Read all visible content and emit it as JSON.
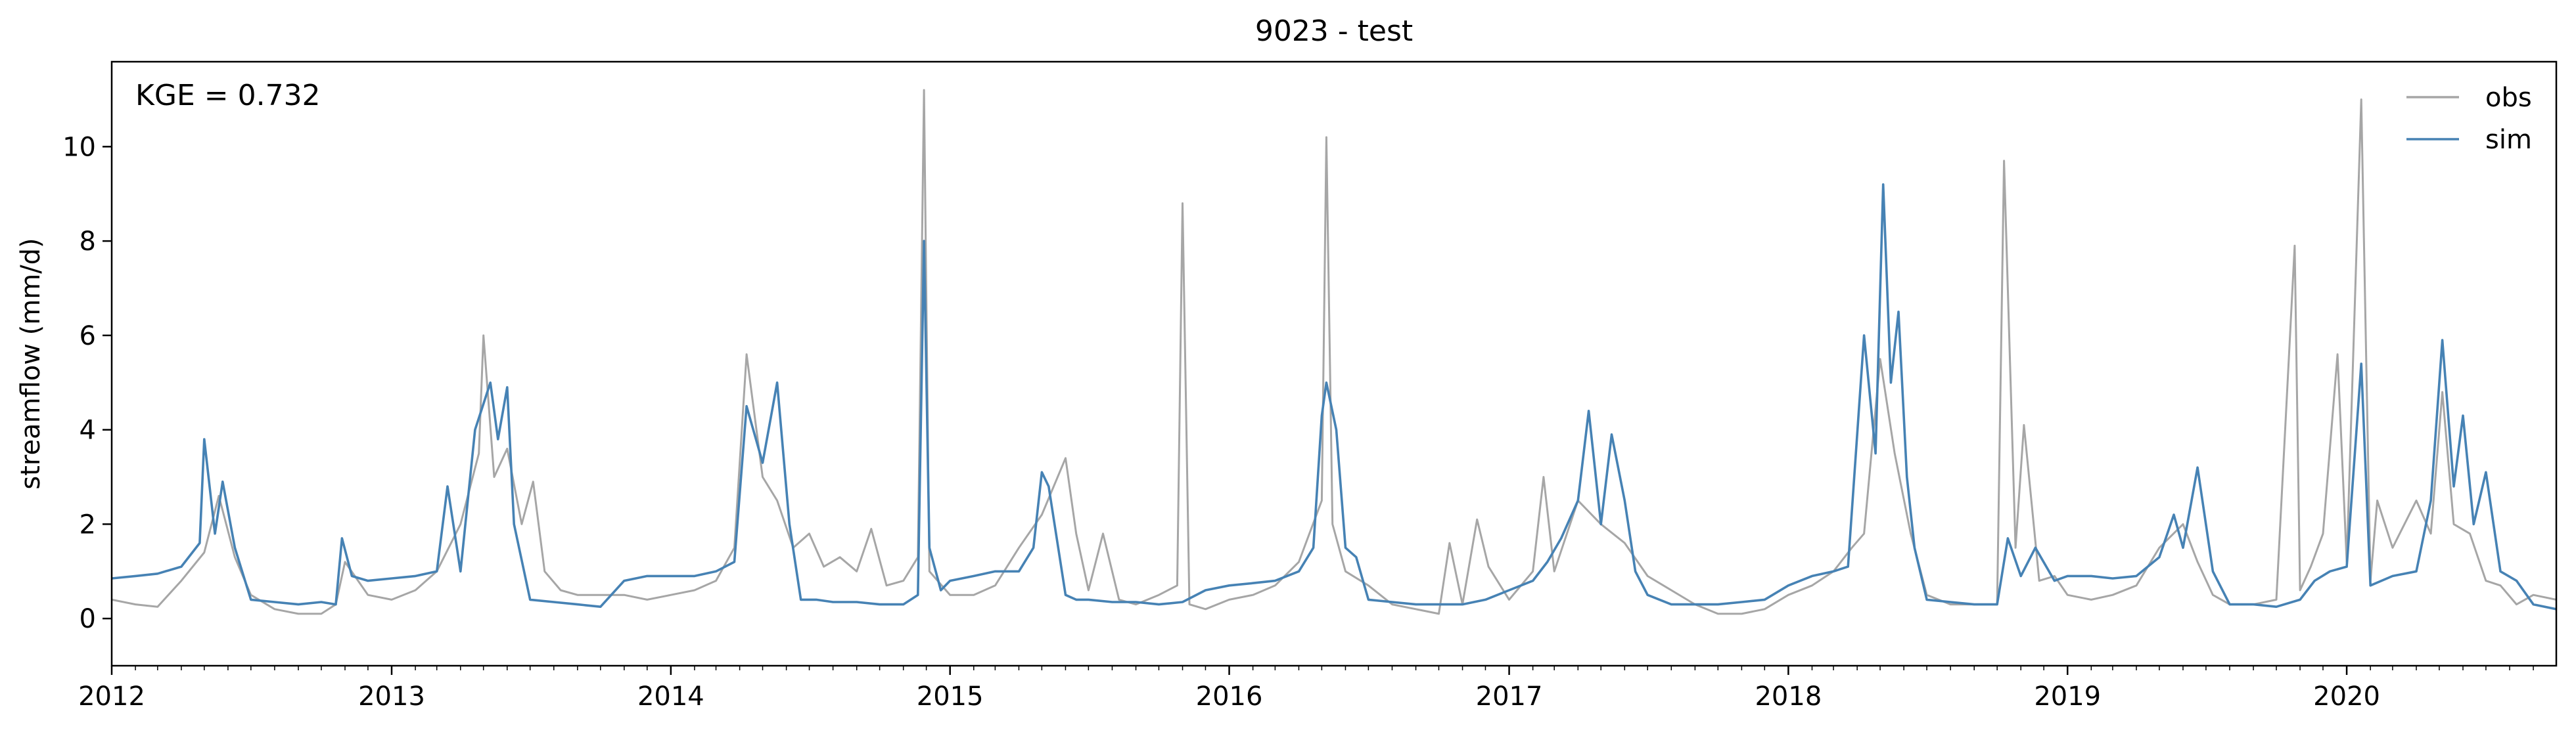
{
  "chart_data": {
    "type": "line",
    "title": "9023 - test",
    "xlabel": "",
    "ylabel": "streamflow (mm/d)",
    "xlim": [
      "2012-01-01",
      "2020-10-01"
    ],
    "ylim": [
      -1.0,
      11.8
    ],
    "x_ticks": [
      {
        "label": "2012",
        "date": "2012-01-01"
      },
      {
        "label": "2013",
        "date": "2013-01-01"
      },
      {
        "label": "2014",
        "date": "2014-01-01"
      },
      {
        "label": "2015",
        "date": "2015-01-01"
      },
      {
        "label": "2016",
        "date": "2016-01-01"
      },
      {
        "label": "2017",
        "date": "2017-01-01"
      },
      {
        "label": "2018",
        "date": "2018-01-01"
      },
      {
        "label": "2019",
        "date": "2019-01-01"
      },
      {
        "label": "2020",
        "date": "2020-01-01"
      }
    ],
    "y_ticks": [
      0,
      2,
      4,
      6,
      8,
      10
    ],
    "grid": false,
    "legend_position": "top-right",
    "annotation": "KGE = 0.732",
    "series": [
      {
        "name": "obs",
        "color": "#a6a6a6",
        "x": [
          "2012-01-01",
          "2012-02-01",
          "2012-03-01",
          "2012-04-01",
          "2012-05-01",
          "2012-05-20",
          "2012-06-10",
          "2012-07-01",
          "2012-08-01",
          "2012-09-01",
          "2012-10-01",
          "2012-10-20",
          "2012-11-01",
          "2012-12-01",
          "2013-01-01",
          "2013-02-01",
          "2013-03-01",
          "2013-04-01",
          "2013-04-25",
          "2013-05-01",
          "2013-05-15",
          "2013-06-01",
          "2013-06-20",
          "2013-07-05",
          "2013-07-20",
          "2013-08-10",
          "2013-09-01",
          "2013-10-01",
          "2013-11-01",
          "2013-12-01",
          "2014-01-01",
          "2014-02-01",
          "2014-03-01",
          "2014-03-25",
          "2014-04-10",
          "2014-05-01",
          "2014-05-20",
          "2014-06-10",
          "2014-07-01",
          "2014-07-20",
          "2014-08-10",
          "2014-09-01",
          "2014-09-20",
          "2014-10-10",
          "2014-11-01",
          "2014-11-20",
          "2014-11-28",
          "2014-12-05",
          "2015-01-01",
          "2015-02-01",
          "2015-03-01",
          "2015-04-01",
          "2015-05-01",
          "2015-06-01",
          "2015-06-15",
          "2015-07-01",
          "2015-07-20",
          "2015-08-10",
          "2015-09-01",
          "2015-10-01",
          "2015-10-25",
          "2015-11-01",
          "2015-11-10",
          "2015-12-01",
          "2016-01-01",
          "2016-02-01",
          "2016-03-01",
          "2016-04-01",
          "2016-05-01",
          "2016-05-07",
          "2016-05-15",
          "2016-06-01",
          "2016-07-01",
          "2016-08-01",
          "2016-09-01",
          "2016-10-01",
          "2016-10-15",
          "2016-11-01",
          "2016-11-20",
          "2016-12-05",
          "2017-01-01",
          "2017-02-01",
          "2017-02-15",
          "2017-03-01",
          "2017-04-01",
          "2017-05-01",
          "2017-06-01",
          "2017-07-01",
          "2017-08-01",
          "2017-09-01",
          "2017-10-01",
          "2017-11-01",
          "2017-12-01",
          "2018-01-01",
          "2018-02-01",
          "2018-03-01",
          "2018-03-25",
          "2018-04-10",
          "2018-05-01",
          "2018-05-20",
          "2018-06-10",
          "2018-07-01",
          "2018-08-01",
          "2018-09-01",
          "2018-10-01",
          "2018-10-10",
          "2018-10-25",
          "2018-11-05",
          "2018-11-25",
          "2018-12-15",
          "2019-01-01",
          "2019-02-01",
          "2019-03-01",
          "2019-04-01",
          "2019-05-01",
          "2019-06-01",
          "2019-06-20",
          "2019-07-10",
          "2019-08-01",
          "2019-09-01",
          "2019-10-01",
          "2019-10-25",
          "2019-11-01",
          "2019-11-15",
          "2019-12-01",
          "2019-12-20",
          "2020-01-01",
          "2020-01-20",
          "2020-02-01",
          "2020-02-10",
          "2020-03-01",
          "2020-04-01",
          "2020-04-20",
          "2020-05-05",
          "2020-05-20",
          "2020-06-10",
          "2020-07-01",
          "2020-07-20",
          "2020-08-10",
          "2020-09-01",
          "2020-10-01"
        ],
        "values": [
          0.4,
          0.3,
          0.25,
          0.8,
          1.4,
          2.6,
          1.3,
          0.5,
          0.2,
          0.1,
          0.1,
          0.3,
          1.2,
          0.5,
          0.4,
          0.6,
          1.0,
          2.0,
          3.5,
          6.0,
          3.0,
          3.6,
          2.0,
          2.9,
          1.0,
          0.6,
          0.5,
          0.5,
          0.5,
          0.4,
          0.5,
          0.6,
          0.8,
          1.5,
          5.6,
          3.0,
          2.5,
          1.5,
          1.8,
          1.1,
          1.3,
          1.0,
          1.9,
          0.7,
          0.8,
          1.3,
          11.2,
          1.0,
          0.5,
          0.5,
          0.7,
          1.5,
          2.2,
          3.4,
          1.8,
          0.6,
          1.8,
          0.4,
          0.3,
          0.5,
          0.7,
          8.8,
          0.3,
          0.2,
          0.4,
          0.5,
          0.7,
          1.2,
          2.5,
          10.2,
          2.0,
          1.0,
          0.7,
          0.3,
          0.2,
          0.1,
          1.6,
          0.3,
          2.1,
          1.1,
          0.4,
          1.0,
          3.0,
          1.0,
          2.5,
          2.0,
          1.6,
          0.9,
          0.6,
          0.3,
          0.1,
          0.1,
          0.2,
          0.5,
          0.7,
          1.0,
          1.5,
          1.8,
          5.5,
          3.5,
          1.8,
          0.5,
          0.3,
          0.3,
          0.3,
          9.7,
          1.5,
          4.1,
          0.8,
          0.9,
          0.5,
          0.4,
          0.5,
          0.7,
          1.5,
          2.0,
          1.2,
          0.5,
          0.3,
          0.3,
          0.4,
          7.9,
          0.6,
          1.1,
          1.8,
          5.6,
          1.2,
          11.0,
          0.8,
          2.5,
          1.5,
          2.5,
          1.8,
          4.8,
          2.0,
          1.8,
          0.8,
          0.7,
          0.3,
          0.5,
          0.4
        ]
      },
      {
        "name": "sim",
        "color": "#4682b4",
        "x": [
          "2012-01-01",
          "2012-02-01",
          "2012-03-01",
          "2012-04-01",
          "2012-04-25",
          "2012-05-01",
          "2012-05-15",
          "2012-05-25",
          "2012-06-10",
          "2012-07-01",
          "2012-08-01",
          "2012-09-01",
          "2012-10-01",
          "2012-10-20",
          "2012-10-28",
          "2012-11-10",
          "2012-12-01",
          "2013-01-01",
          "2013-02-01",
          "2013-03-01",
          "2013-03-15",
          "2013-04-01",
          "2013-04-20",
          "2013-05-10",
          "2013-05-20",
          "2013-06-01",
          "2013-06-10",
          "2013-07-01",
          "2013-08-01",
          "2013-09-01",
          "2013-10-01",
          "2013-11-01",
          "2013-12-01",
          "2014-01-01",
          "2014-02-01",
          "2014-03-01",
          "2014-03-25",
          "2014-04-10",
          "2014-05-01",
          "2014-05-20",
          "2014-06-05",
          "2014-06-20",
          "2014-07-10",
          "2014-08-01",
          "2014-09-01",
          "2014-10-01",
          "2014-11-01",
          "2014-11-20",
          "2014-11-28",
          "2014-12-05",
          "2014-12-20",
          "2015-01-01",
          "2015-02-01",
          "2015-03-01",
          "2015-04-01",
          "2015-04-20",
          "2015-05-01",
          "2015-05-10",
          "2015-06-01",
          "2015-06-15",
          "2015-07-01",
          "2015-08-01",
          "2015-09-01",
          "2015-10-01",
          "2015-11-01",
          "2015-12-01",
          "2016-01-01",
          "2016-02-01",
          "2016-03-01",
          "2016-04-01",
          "2016-04-20",
          "2016-05-01",
          "2016-05-07",
          "2016-05-20",
          "2016-06-01",
          "2016-06-15",
          "2016-07-01",
          "2016-08-01",
          "2016-09-01",
          "2016-10-01",
          "2016-11-01",
          "2016-12-01",
          "2017-01-01",
          "2017-02-01",
          "2017-02-20",
          "2017-03-10",
          "2017-04-01",
          "2017-04-15",
          "2017-05-01",
          "2017-05-15",
          "2017-06-01",
          "2017-06-15",
          "2017-07-01",
          "2017-08-01",
          "2017-09-01",
          "2017-10-01",
          "2017-11-01",
          "2017-12-01",
          "2018-01-01",
          "2018-02-01",
          "2018-03-01",
          "2018-03-20",
          "2018-04-10",
          "2018-04-25",
          "2018-05-05",
          "2018-05-15",
          "2018-05-25",
          "2018-06-05",
          "2018-06-15",
          "2018-07-01",
          "2018-08-01",
          "2018-09-01",
          "2018-10-01",
          "2018-10-15",
          "2018-11-01",
          "2018-11-20",
          "2018-12-15",
          "2019-01-01",
          "2019-02-01",
          "2019-03-01",
          "2019-04-01",
          "2019-05-01",
          "2019-05-20",
          "2019-06-01",
          "2019-06-20",
          "2019-07-10",
          "2019-08-01",
          "2019-09-01",
          "2019-10-01",
          "2019-11-01",
          "2019-11-20",
          "2019-12-10",
          "2020-01-01",
          "2020-01-20",
          "2020-02-01",
          "2020-03-01",
          "2020-04-01",
          "2020-04-20",
          "2020-05-05",
          "2020-05-20",
          "2020-06-01",
          "2020-06-15",
          "2020-07-01",
          "2020-07-20",
          "2020-08-10",
          "2020-09-01",
          "2020-10-01"
        ],
        "values": [
          0.85,
          0.9,
          0.95,
          1.1,
          1.6,
          3.8,
          1.8,
          2.9,
          1.5,
          0.4,
          0.35,
          0.3,
          0.35,
          0.3,
          1.7,
          0.9,
          0.8,
          0.85,
          0.9,
          1.0,
          2.8,
          1.0,
          4.0,
          5.0,
          3.8,
          4.9,
          2.0,
          0.4,
          0.35,
          0.3,
          0.25,
          0.8,
          0.9,
          0.9,
          0.9,
          1.0,
          1.2,
          4.5,
          3.3,
          5.0,
          2.0,
          0.4,
          0.4,
          0.35,
          0.35,
          0.3,
          0.3,
          0.5,
          8.0,
          1.5,
          0.6,
          0.8,
          0.9,
          1.0,
          1.0,
          1.5,
          3.1,
          2.8,
          0.5,
          0.4,
          0.4,
          0.35,
          0.35,
          0.3,
          0.35,
          0.6,
          0.7,
          0.75,
          0.8,
          1.0,
          1.5,
          4.3,
          5.0,
          4.0,
          1.5,
          1.3,
          0.4,
          0.35,
          0.3,
          0.3,
          0.3,
          0.4,
          0.6,
          0.8,
          1.2,
          1.7,
          2.5,
          4.4,
          2.0,
          3.9,
          2.5,
          1.0,
          0.5,
          0.3,
          0.3,
          0.3,
          0.35,
          0.4,
          0.7,
          0.9,
          1.0,
          1.1,
          6.0,
          3.5,
          9.2,
          5.0,
          6.5,
          3.0,
          1.5,
          0.4,
          0.35,
          0.3,
          0.3,
          1.7,
          0.9,
          1.5,
          0.8,
          0.9,
          0.9,
          0.85,
          0.9,
          1.3,
          2.2,
          1.5,
          3.2,
          1.0,
          0.3,
          0.3,
          0.25,
          0.4,
          0.8,
          1.0,
          1.1,
          5.4,
          0.7,
          0.9,
          1.0,
          2.5,
          5.9,
          2.8,
          4.3,
          2.0,
          3.1,
          1.0,
          0.8,
          0.3,
          0.2
        ]
      }
    ]
  }
}
